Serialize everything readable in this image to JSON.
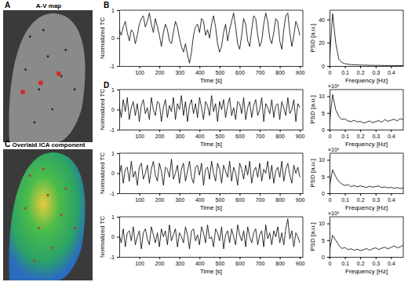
{
  "panels": [
    {
      "label": "A",
      "title": "A-V map"
    },
    {
      "label": "B"
    },
    {
      "label": "C",
      "title": "Overlaid ICA component"
    },
    {
      "label": "D"
    }
  ],
  "chart_data": [
    {
      "type": "line",
      "x_label": "Time [s]",
      "y_label": "Normalized TC",
      "color": "#000000",
      "xlim": [
        0,
        915
      ],
      "xticks": [
        100,
        200,
        300,
        400,
        500,
        600,
        700,
        800,
        900
      ],
      "ylim": [
        -1,
        1
      ],
      "yticks": [
        -1,
        0,
        1
      ],
      "x": [
        0,
        10,
        20,
        30,
        40,
        50,
        60,
        70,
        80,
        90,
        100,
        110,
        120,
        130,
        140,
        150,
        160,
        170,
        180,
        190,
        200,
        210,
        220,
        230,
        240,
        250,
        260,
        270,
        280,
        290,
        300,
        310,
        320,
        330,
        340,
        350,
        360,
        370,
        380,
        390,
        400,
        410,
        420,
        430,
        440,
        450,
        460,
        470,
        480,
        490,
        500,
        510,
        520,
        530,
        540,
        550,
        560,
        570,
        580,
        590,
        600,
        610,
        620,
        630,
        640,
        650,
        660,
        670,
        680,
        690,
        700,
        710,
        720,
        730,
        740,
        750,
        760,
        770,
        780,
        790,
        800,
        810,
        820,
        830,
        840,
        850,
        860,
        870,
        880,
        890,
        900
      ],
      "values": [
        0.3,
        0.1,
        0.4,
        0.6,
        0.2,
        -0.1,
        0.3,
        0.2,
        -0.2,
        0.1,
        0.5,
        0.7,
        0.8,
        0.4,
        0.6,
        0.9,
        0.5,
        0.2,
        0.7,
        0.4,
        0.1,
        -0.3,
        0.2,
        0.5,
        0.3,
        -0.1,
        -0.2,
        0.2,
        0.6,
        0.4,
        0.0,
        -0.3,
        -0.5,
        -0.2,
        -0.6,
        -0.9,
        -0.5,
        0.1,
        0.4,
        0.5,
        0.2,
        0.7,
        0.6,
        0.1,
        0.3,
        0.0,
        0.5,
        0.8,
        0.4,
        -0.2,
        -0.5,
        -0.3,
        0.2,
        0.5,
        -0.1,
        0.3,
        0.6,
        0.9,
        0.4,
        -0.2,
        -0.4,
        0.1,
        0.7,
        0.5,
        -0.1,
        -0.3,
        0.3,
        0.8,
        0.7,
        0.1,
        -0.3,
        -0.1,
        0.5,
        0.9,
        0.6,
        0.0,
        -0.2,
        0.2,
        0.7,
        0.6,
        -0.1,
        -0.4,
        0.3,
        0.8,
        0.9,
        0.2,
        -0.3,
        0.1,
        0.6,
        0.4,
        0.1
      ]
    },
    {
      "type": "line",
      "x_label": "Frequency [Hz]",
      "y_label": "PSD [a.u.]",
      "color": "#000000",
      "xlim": [
        0,
        0.48
      ],
      "xticks": [
        0,
        0.1,
        0.2,
        0.3,
        0.4
      ],
      "ylim": [
        0,
        48
      ],
      "yticks": [
        0,
        20,
        40
      ],
      "x": [
        0,
        0.02,
        0.04,
        0.06,
        0.08,
        0.1,
        0.12,
        0.14,
        0.16,
        0.18,
        0.2,
        0.22,
        0.24,
        0.26,
        0.28,
        0.3,
        0.32,
        0.34,
        0.36,
        0.38,
        0.4,
        0.42,
        0.44,
        0.46,
        0.48
      ],
      "values": [
        5,
        45,
        20,
        6,
        3,
        2,
        1.5,
        1.2,
        1,
        1,
        0.8,
        0.8,
        0.7,
        0.6,
        0.6,
        0.5,
        0.5,
        0.5,
        0.4,
        0.4,
        0.4,
        0.4,
        0.3,
        0.3,
        0.3
      ]
    },
    {
      "type": "line",
      "x_label": "Time [s]",
      "y_label": "Normalized TC",
      "color": "#000000",
      "xlim": [
        0,
        915
      ],
      "xticks": [
        100,
        200,
        300,
        400,
        500,
        600,
        700,
        800,
        900
      ],
      "ylim": [
        -1,
        1
      ],
      "yticks": [
        -1,
        0,
        1
      ],
      "x": [
        0,
        10,
        20,
        30,
        40,
        50,
        60,
        70,
        80,
        90,
        100,
        110,
        120,
        130,
        140,
        150,
        160,
        170,
        180,
        190,
        200,
        210,
        220,
        230,
        240,
        250,
        260,
        270,
        280,
        290,
        300,
        310,
        320,
        330,
        340,
        350,
        360,
        370,
        380,
        390,
        400,
        410,
        420,
        430,
        440,
        450,
        460,
        470,
        480,
        490,
        500,
        510,
        520,
        530,
        540,
        550,
        560,
        570,
        580,
        590,
        600,
        610,
        620,
        630,
        640,
        650,
        660,
        670,
        680,
        690,
        700,
        710,
        720,
        730,
        740,
        750,
        760,
        770,
        780,
        790,
        800,
        810,
        820,
        830,
        840,
        850,
        860,
        870,
        880,
        890,
        900
      ],
      "values": [
        0.2,
        -0.4,
        0.5,
        -0.1,
        0.6,
        -0.5,
        0.1,
        0.4,
        -0.3,
        0.3,
        -0.6,
        0.2,
        0.5,
        -0.2,
        0.1,
        -0.5,
        0.6,
        0.0,
        -0.3,
        0.4,
        0.3,
        -0.6,
        0.1,
        0.5,
        -0.4,
        0.2,
        -0.1,
        0.6,
        -0.5,
        0.3,
        0.0,
        0.7,
        -0.3,
        0.4,
        -0.6,
        0.2,
        0.5,
        -0.2,
        0.3,
        -0.4,
        0.6,
        0.1,
        -0.5,
        0.4,
        0.2,
        -0.3,
        0.7,
        -0.1,
        0.3,
        -0.6,
        0.4,
        0.0,
        0.5,
        -0.4,
        0.2,
        0.6,
        -0.3,
        0.1,
        -0.5,
        0.4,
        0.3,
        -0.2,
        0.6,
        -0.5,
        0.1,
        0.4,
        -0.4,
        0.2,
        0.5,
        -0.3,
        0.0,
        0.6,
        -0.6,
        0.3,
        0.1,
        -0.2,
        0.5,
        -0.4,
        0.2,
        0.3,
        -0.5,
        0.4,
        0.1,
        -0.3,
        0.6,
        -0.2,
        0.0,
        0.5,
        -0.6,
        0.3,
        0.1
      ]
    },
    {
      "type": "line",
      "x_label": "Frequency [Hz]",
      "y_label": "PSD [a.u.]",
      "annotation": "×10⁶",
      "color": "#000000",
      "xlim": [
        0,
        0.48
      ],
      "xticks": [
        0,
        0.1,
        0.2,
        0.3,
        0.4
      ],
      "ylim": [
        0,
        12
      ],
      "yticks": [
        0,
        5,
        10
      ],
      "x": [
        0,
        0.02,
        0.04,
        0.06,
        0.08,
        0.1,
        0.12,
        0.14,
        0.16,
        0.18,
        0.2,
        0.22,
        0.24,
        0.26,
        0.28,
        0.3,
        0.32,
        0.34,
        0.36,
        0.38,
        0.4,
        0.42,
        0.44,
        0.46,
        0.48
      ],
      "values": [
        2,
        10.5,
        6,
        4,
        3,
        3.2,
        2.6,
        2.4,
        2.8,
        2.3,
        2.5,
        2.0,
        2.2,
        2.6,
        2.1,
        2.4,
        2.7,
        2.2,
        3.0,
        2.5,
        2.8,
        3.1,
        2.6,
        3.3,
        2.9
      ]
    },
    {
      "type": "line",
      "x_label": "Time [s]",
      "y_label": "Normalized TC",
      "color": "#000000",
      "xlim": [
        0,
        915
      ],
      "xticks": [
        100,
        200,
        300,
        400,
        500,
        600,
        700,
        800,
        900
      ],
      "ylim": [
        -1,
        1
      ],
      "yticks": [
        -1,
        0,
        1
      ],
      "x": [
        0,
        10,
        20,
        30,
        40,
        50,
        60,
        70,
        80,
        90,
        100,
        110,
        120,
        130,
        140,
        150,
        160,
        170,
        180,
        190,
        200,
        210,
        220,
        230,
        240,
        250,
        260,
        270,
        280,
        290,
        300,
        310,
        320,
        330,
        340,
        350,
        360,
        370,
        380,
        390,
        400,
        410,
        420,
        430,
        440,
        450,
        460,
        470,
        480,
        490,
        500,
        510,
        520,
        530,
        540,
        550,
        560,
        570,
        580,
        590,
        600,
        610,
        620,
        630,
        640,
        650,
        660,
        670,
        680,
        690,
        700,
        710,
        720,
        730,
        740,
        750,
        760,
        770,
        780,
        790,
        800,
        810,
        820,
        830,
        840,
        850,
        860,
        870,
        880,
        890,
        900
      ],
      "values": [
        -0.1,
        0.4,
        -0.5,
        0.2,
        0.3,
        -0.4,
        0.6,
        -0.2,
        0.1,
        -0.6,
        0.3,
        0.5,
        -0.3,
        0.0,
        0.4,
        -0.5,
        0.2,
        0.6,
        -0.1,
        -0.4,
        0.5,
        0.1,
        -0.6,
        0.3,
        0.2,
        -0.2,
        0.7,
        -0.3,
        0.0,
        0.4,
        -0.5,
        0.2,
        0.5,
        -0.4,
        0.1,
        0.6,
        -0.2,
        -0.5,
        0.3,
        0.4,
        -0.1,
        0.5,
        -0.6,
        0.2,
        0.3,
        -0.3,
        0.6,
        0.0,
        -0.4,
        0.5,
        0.2,
        -0.5,
        0.4,
        0.1,
        -0.2,
        0.6,
        -0.4,
        0.3,
        0.0,
        -0.6,
        0.5,
        0.2,
        -0.3,
        0.4,
        -0.1,
        0.6,
        -0.5,
        0.1,
        0.3,
        -0.2,
        0.5,
        -0.4,
        0.2,
        0.0,
        0.6,
        -0.3,
        0.4,
        -0.5,
        0.1,
        0.3,
        -0.2,
        0.6,
        -0.4,
        0.2,
        0.5,
        -0.1,
        -0.5,
        0.4,
        0.0,
        0.3,
        -0.2
      ]
    },
    {
      "type": "line",
      "x_label": "Frequency [Hz]",
      "y_label": "PSD [a.u.]",
      "annotation": "×10⁶",
      "color": "#000000",
      "xlim": [
        0,
        0.48
      ],
      "xticks": [
        0,
        0.1,
        0.2,
        0.3,
        0.4
      ],
      "ylim": [
        0,
        12
      ],
      "yticks": [
        0,
        5,
        10
      ],
      "x": [
        0,
        0.02,
        0.04,
        0.06,
        0.08,
        0.1,
        0.12,
        0.14,
        0.16,
        0.18,
        0.2,
        0.22,
        0.24,
        0.26,
        0.28,
        0.3,
        0.32,
        0.34,
        0.36,
        0.38,
        0.4,
        0.42,
        0.44,
        0.46,
        0.48
      ],
      "values": [
        2,
        7,
        5,
        3.5,
        2.8,
        2.3,
        2.6,
        2.0,
        2.3,
        1.9,
        2.2,
        2.0,
        1.7,
        2.1,
        1.8,
        2.0,
        2.2,
        1.7,
        1.9,
        1.6,
        1.8,
        1.5,
        1.7,
        1.4,
        1.6
      ]
    },
    {
      "type": "line",
      "x_label": "Time [s]",
      "y_label": "Normalized TC",
      "color": "#000000",
      "xlim": [
        0,
        915
      ],
      "xticks": [
        100,
        200,
        300,
        400,
        500,
        600,
        700,
        800,
        900
      ],
      "ylim": [
        -1,
        1
      ],
      "yticks": [
        -1,
        0,
        1
      ],
      "x": [
        0,
        10,
        20,
        30,
        40,
        50,
        60,
        70,
        80,
        90,
        100,
        110,
        120,
        130,
        140,
        150,
        160,
        170,
        180,
        190,
        200,
        210,
        220,
        230,
        240,
        250,
        260,
        270,
        280,
        290,
        300,
        310,
        320,
        330,
        340,
        350,
        360,
        370,
        380,
        390,
        400,
        410,
        420,
        430,
        440,
        450,
        460,
        470,
        480,
        490,
        500,
        510,
        520,
        530,
        540,
        550,
        560,
        570,
        580,
        590,
        600,
        610,
        620,
        630,
        640,
        650,
        660,
        670,
        680,
        690,
        700,
        710,
        720,
        730,
        740,
        750,
        760,
        770,
        780,
        790,
        800,
        810,
        820,
        830,
        840,
        850,
        860,
        870,
        880,
        890,
        900
      ],
      "values": [
        0.1,
        -0.3,
        0.4,
        -0.5,
        0.2,
        0.3,
        -0.2,
        0.5,
        -0.4,
        0.0,
        0.3,
        -0.6,
        0.2,
        0.4,
        -0.1,
        -0.4,
        0.5,
        0.1,
        -0.3,
        0.2,
        -0.5,
        0.4,
        0.0,
        0.3,
        -0.4,
        0.6,
        -0.2,
        0.1,
        0.4,
        -0.5,
        0.2,
        0.0,
        -0.3,
        0.5,
        0.1,
        -0.6,
        0.3,
        0.4,
        -0.2,
        0.1,
        -0.4,
        0.5,
        0.2,
        -0.3,
        0.6,
        -0.1,
        0.0,
        -0.5,
        0.4,
        0.2,
        -0.2,
        0.5,
        -0.6,
        0.1,
        0.3,
        -0.3,
        0.4,
        0.0,
        -0.4,
        0.6,
        0.1,
        -0.2,
        0.3,
        -0.5,
        0.5,
        0.0,
        -0.3,
        0.2,
        0.4,
        -0.4,
        0.1,
        0.3,
        -0.5,
        0.6,
        -0.1,
        0.2,
        -0.4,
        0.3,
        0.0,
        0.5,
        -0.3,
        0.2,
        -0.4,
        0.4,
        0.9,
        -0.1,
        0.3,
        -0.5,
        0.2,
        0.0,
        -0.3
      ]
    },
    {
      "type": "line",
      "x_label": "Frequency [Hz]",
      "y_label": "PSD [a.u.]",
      "annotation": "×10⁶",
      "color": "#000000",
      "xlim": [
        0,
        0.48
      ],
      "xticks": [
        0,
        0.1,
        0.2,
        0.3,
        0.4
      ],
      "ylim": [
        0,
        12
      ],
      "yticks": [
        0,
        5,
        10
      ],
      "x": [
        0,
        0.02,
        0.04,
        0.06,
        0.08,
        0.1,
        0.12,
        0.14,
        0.16,
        0.18,
        0.2,
        0.22,
        0.24,
        0.26,
        0.28,
        0.3,
        0.32,
        0.34,
        0.36,
        0.38,
        0.4,
        0.42,
        0.44,
        0.46,
        0.48
      ],
      "values": [
        2,
        6.5,
        5,
        3.5,
        2.5,
        2.8,
        2.2,
        2.4,
        2.0,
        2.3,
        1.9,
        2.1,
        2.5,
        2.0,
        2.4,
        2.7,
        2.2,
        2.6,
        2.9,
        2.4,
        2.8,
        3.3,
        2.7,
        3.0,
        3.5
      ]
    }
  ]
}
